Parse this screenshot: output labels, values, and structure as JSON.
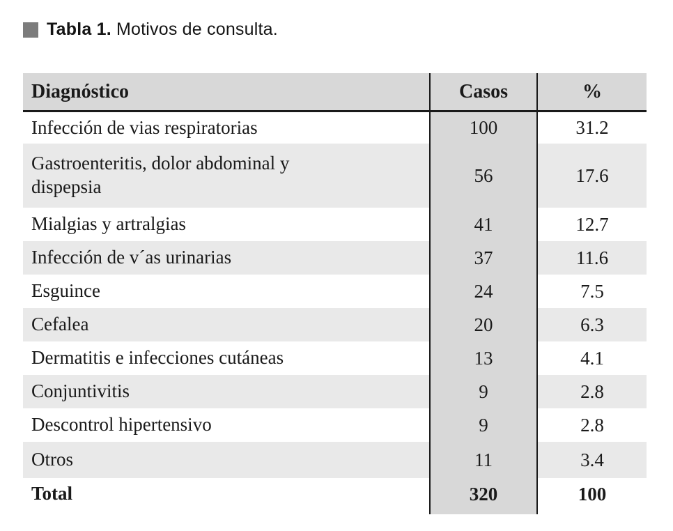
{
  "figure": {
    "title_bold": "Tabla 1.",
    "title_rest": " Motivos de consulta.",
    "marker_color": "#7c7c7c"
  },
  "table": {
    "columns": [
      "Diagnóstico",
      "Casos",
      "%"
    ],
    "rows": [
      {
        "diagnosis": "Infección de vias respiratorias",
        "casos": "100",
        "pct": "31.2"
      },
      {
        "diagnosis": "Gastroenteritis, dolor abdominal y\ndispepsia",
        "casos": "56",
        "pct": "17.6"
      },
      {
        "diagnosis": "Mialgias y artralgias",
        "casos": "41",
        "pct": "12.7"
      },
      {
        "diagnosis": "Infección de v´as urinarias",
        "casos": "37",
        "pct": "11.6"
      },
      {
        "diagnosis": "Esguince",
        "casos": "24",
        "pct": "7.5"
      },
      {
        "diagnosis": "Cefalea",
        "casos": "20",
        "pct": "6.3"
      },
      {
        "diagnosis": "Dermatitis e infecciones cutáneas",
        "casos": "13",
        "pct": "4.1"
      },
      {
        "diagnosis": "Conjuntivitis",
        "casos": "9",
        "pct": "2.8"
      },
      {
        "diagnosis": "Descontrol hipertensivo",
        "casos": "9",
        "pct": "2.8"
      },
      {
        "diagnosis": "Otros",
        "casos": "11",
        "pct": "3.4"
      }
    ],
    "total": {
      "diagnosis": "Total",
      "casos": "320",
      "pct": "100"
    }
  },
  "colors": {
    "header_bg": "#d8d8d8",
    "casos_column_bg": "#d8d8d8",
    "row_stripe_bg": "#e9e9e9",
    "rule": "#1a1a1a",
    "text": "#1a1a1a"
  }
}
